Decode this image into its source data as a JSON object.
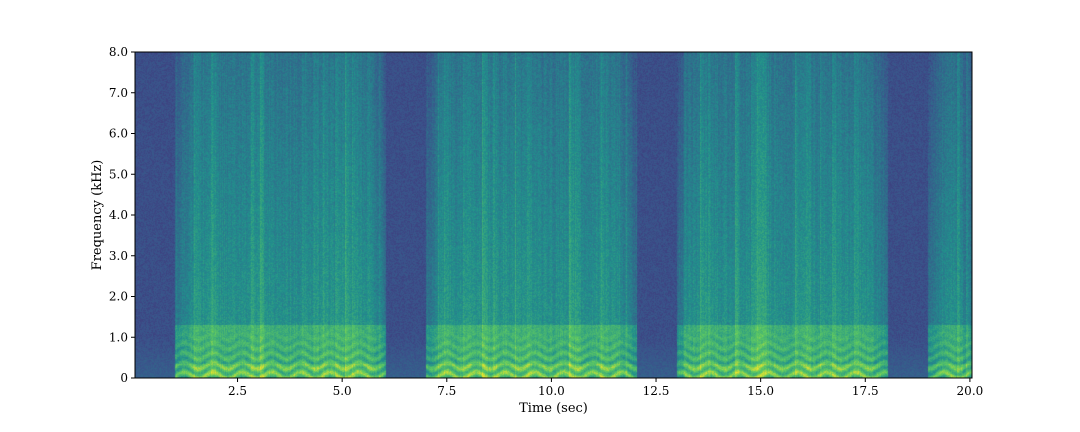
{
  "chart_data": {
    "type": "heatmap",
    "subtype": "spectrogram",
    "title": "",
    "xlabel": "Time (sec)",
    "ylabel": "Frequency (kHz)",
    "xlim": [
      0.05,
      20.05
    ],
    "ylim": [
      0,
      8.0
    ],
    "x_ticks": [
      2.5,
      5.0,
      7.5,
      10.0,
      12.5,
      15.0,
      17.5,
      20.0
    ],
    "x_tick_labels": [
      "2.5",
      "5.0",
      "7.5",
      "10.0",
      "12.5",
      "15.0",
      "17.5",
      "20.0"
    ],
    "y_ticks": [
      0,
      1.0,
      2.0,
      3.0,
      4.0,
      5.0,
      6.0,
      7.0,
      8.0
    ],
    "y_tick_labels": [
      "0",
      "1.0",
      "2.0",
      "3.0",
      "4.0",
      "5.0",
      "6.0",
      "7.0",
      "8.0"
    ],
    "colormap": "viridis",
    "colors": {
      "low": "#3b528b",
      "mid": "#21918c",
      "high": "#fde725",
      "frame": "#000000"
    },
    "segments": [
      {
        "type": "silence",
        "start": 0.05,
        "end": 1.0
      },
      {
        "type": "speech",
        "start": 1.0,
        "end": 6.05
      },
      {
        "type": "silence",
        "start": 6.05,
        "end": 7.0
      },
      {
        "type": "speech",
        "start": 7.0,
        "end": 12.05
      },
      {
        "type": "silence",
        "start": 12.05,
        "end": 13.0
      },
      {
        "type": "speech",
        "start": 13.0,
        "end": 18.05
      },
      {
        "type": "silence",
        "start": 18.05,
        "end": 19.0
      },
      {
        "type": "speech",
        "start": 19.0,
        "end": 20.05
      }
    ],
    "grid": false,
    "legend": "none"
  }
}
